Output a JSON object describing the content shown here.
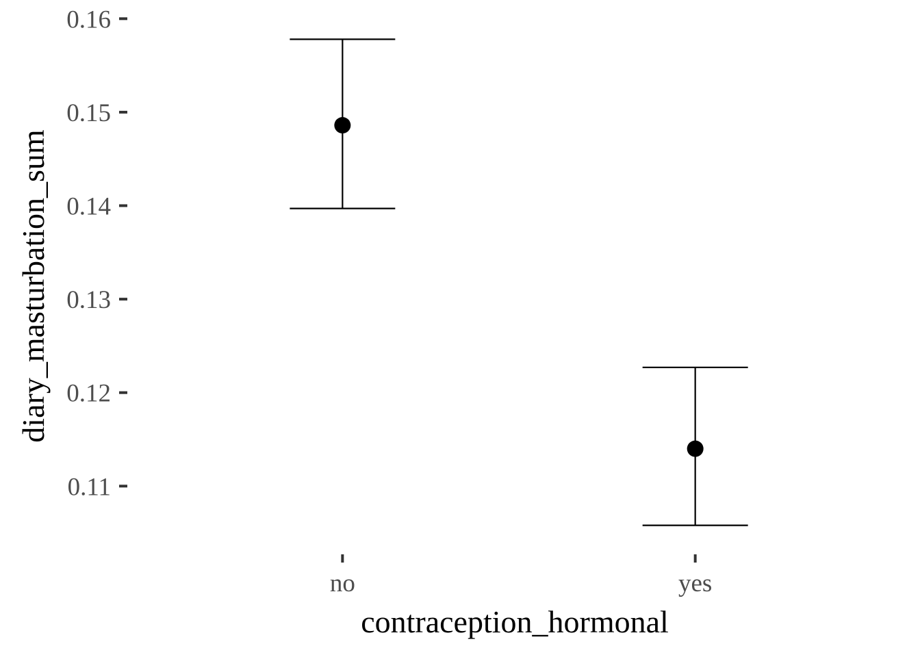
{
  "chart_data": {
    "type": "scatter",
    "title": "",
    "xlabel": "contraception_hormonal",
    "ylabel": "diary_masturbation_sum",
    "categories": [
      "no",
      "yes"
    ],
    "points": [
      {
        "category": "no",
        "estimate": 0.1486,
        "lower": 0.1397,
        "upper": 0.1578
      },
      {
        "category": "yes",
        "estimate": 0.114,
        "lower": 0.1058,
        "upper": 0.1227
      }
    ],
    "ylim": [
      0.1027,
      0.162
    ],
    "yticks": [
      0.11,
      0.12,
      0.13,
      0.14,
      0.15,
      0.16
    ],
    "ytick_labels": [
      "0.11",
      "0.12",
      "0.13",
      "0.14",
      "0.15",
      "0.16"
    ],
    "grid": false,
    "legend": "none"
  }
}
